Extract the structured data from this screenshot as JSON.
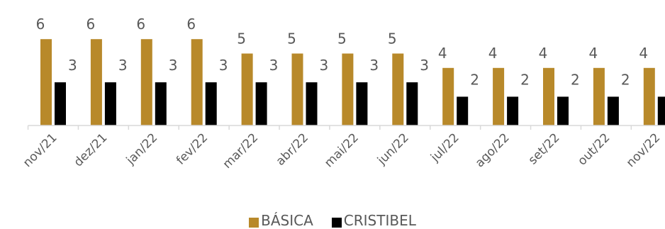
{
  "chart_data": {
    "type": "bar",
    "categories": [
      "nov/21",
      "dez/21",
      "jan/22",
      "fev/22",
      "mar/22",
      "abr/22",
      "mai/22",
      "jun/22",
      "jul/22",
      "ago/22",
      "set/22",
      "out/22",
      "nov/22"
    ],
    "series": [
      {
        "name": "BÁSICA",
        "color": "#B8892A",
        "values": [
          6,
          6,
          6,
          6,
          5,
          5,
          5,
          5,
          4,
          4,
          4,
          4,
          4
        ]
      },
      {
        "name": "CRISTIBEL",
        "color": "#000000",
        "values": [
          3,
          3,
          3,
          3,
          3,
          3,
          3,
          3,
          2,
          2,
          2,
          2,
          2
        ]
      }
    ],
    "ylim": [
      0,
      6
    ],
    "grid": false,
    "legend_position": "bottom"
  }
}
